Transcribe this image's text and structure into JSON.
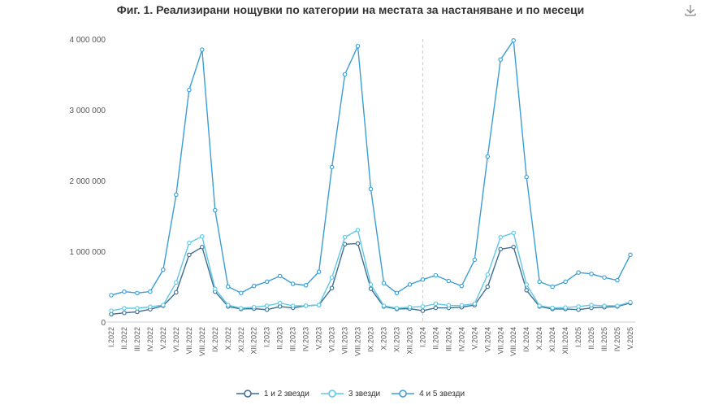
{
  "header": {
    "title": "Фиг. 1. Реализирани нощувки по категории на местата за настаняване и по месеци"
  },
  "toolbar": {
    "download_icon": "download-icon"
  },
  "colors": {
    "series1": "#3e6e92",
    "series2": "#5fc8e6",
    "series3": "#3b9ed6",
    "grid_marker": "#c8c8c8",
    "axis": "#555555"
  },
  "chart_data": {
    "type": "line",
    "title": "Фиг. 1. Реализирани нощувки по категории на местата за настаняване и по месеци",
    "xlabel": "",
    "ylabel": "",
    "ylim": [
      0,
      4000000
    ],
    "yticks": [
      "0",
      "1 000 000",
      "2 000 000",
      "3 000 000",
      "4 000 000"
    ],
    "grid": false,
    "marker_line_category": "I.2024",
    "legend_position": "bottom",
    "categories": [
      "I.2022",
      "II.2022",
      "III.2022",
      "IV.2022",
      "V.2022",
      "VI.2022",
      "VII.2022",
      "VIII.2022",
      "IX.2022",
      "X.2022",
      "XI.2022",
      "XII.2022",
      "I.2023",
      "II.2023",
      "III.2023",
      "IV.2023",
      "V.2023",
      "VI.2023",
      "VII.2023",
      "VIII.2023",
      "IX.2023",
      "X.2023",
      "XI.2023",
      "XII.2023",
      "I.2024",
      "II.2024",
      "III.2024",
      "IV.2024",
      "V.2024",
      "VI.2024",
      "VII.2024",
      "VIII.2024",
      "IX.2024",
      "X.2024",
      "XI.2024",
      "XII.2024",
      "I.2025",
      "II.2025",
      "III.2025",
      "IV.2025",
      "V.2025"
    ],
    "tick_labels": [
      "I.2022",
      "",
      "III.2022",
      "",
      "V.2022",
      "",
      "VII.2022",
      "",
      "IX.2022",
      "",
      "XI.2022",
      "",
      "I.2023",
      "",
      "III.2023",
      "",
      "V.2023",
      "",
      "VII.2023",
      "",
      "IX.2023",
      "",
      "XI.2023",
      "",
      "I.2024",
      "",
      "III.2024",
      "",
      "V.2024",
      "",
      "VII.2024",
      "",
      "IX.2024",
      "",
      "XI.2024",
      "",
      "I.2025",
      "",
      "III.2025",
      "",
      "V.2025"
    ],
    "tick_labels_full": [
      "I.2022",
      "II.2022",
      "III.2022",
      "IV.2022",
      "V.2022",
      "VI.2022",
      "VII.2022",
      "VIII.2022",
      "IX.2022",
      "X.2022",
      "XI.2022",
      "XII.2022",
      "I.2023",
      "II.2023",
      "III.2023",
      "IV.2023",
      "V.2023",
      "VI.2023",
      "VII.2023",
      "VIII.2023",
      "IX.2023",
      "X.2023",
      "XI.2023",
      "XII.2023",
      "I.2024",
      "II.2024",
      "III.2024",
      "IV.2024",
      "V.2024",
      "VI.2024",
      "VII.2024",
      "VIII.2024",
      "IX.2024",
      "X.2024",
      "XI.2024",
      "XII.2024",
      "I.2025",
      "II.2025",
      "III.2025",
      "IV.2025",
      "V.2025"
    ],
    "series": [
      {
        "name": "1 и 2 звезди",
        "color": "#3e6e92",
        "values": [
          110000,
          130000,
          145000,
          180000,
          230000,
          420000,
          950000,
          1060000,
          430000,
          220000,
          185000,
          190000,
          175000,
          220000,
          200000,
          230000,
          240000,
          480000,
          1100000,
          1110000,
          470000,
          220000,
          185000,
          190000,
          160000,
          200000,
          200000,
          210000,
          240000,
          500000,
          1030000,
          1060000,
          450000,
          220000,
          185000,
          185000,
          175000,
          200000,
          210000,
          220000,
          270000
        ]
      },
      {
        "name": "3 звезди",
        "color": "#5fc8e6",
        "values": [
          160000,
          195000,
          195000,
          215000,
          240000,
          560000,
          1120000,
          1210000,
          470000,
          240000,
          195000,
          210000,
          230000,
          270000,
          230000,
          230000,
          240000,
          630000,
          1200000,
          1300000,
          530000,
          230000,
          195000,
          210000,
          220000,
          260000,
          235000,
          235000,
          260000,
          670000,
          1200000,
          1260000,
          530000,
          230000,
          200000,
          205000,
          220000,
          240000,
          230000,
          230000,
          280000
        ]
      },
      {
        "name": "4 и 5 звезди",
        "color": "#3b9ed6",
        "values": [
          380000,
          430000,
          410000,
          430000,
          740000,
          1800000,
          3280000,
          3850000,
          1580000,
          500000,
          410000,
          510000,
          570000,
          650000,
          540000,
          520000,
          710000,
          2190000,
          3500000,
          3900000,
          1880000,
          550000,
          410000,
          530000,
          600000,
          660000,
          580000,
          510000,
          880000,
          2340000,
          3710000,
          3980000,
          2050000,
          570000,
          500000,
          570000,
          700000,
          680000,
          630000,
          590000,
          950000
        ]
      }
    ]
  }
}
